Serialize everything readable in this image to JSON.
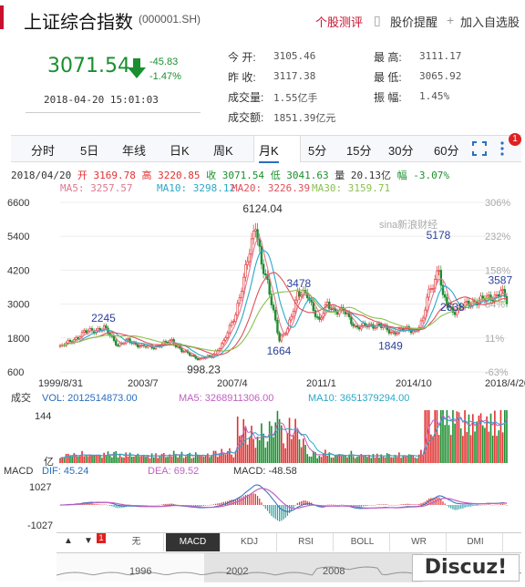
{
  "header": {
    "title": "上证综合指数",
    "code": "(000001.SH)",
    "review_label": "个股测评",
    "alert_label": "股价提醒",
    "add_label": "加入自选股"
  },
  "quote": {
    "price": "3071.54",
    "change": "-45.83",
    "change_pct": "-1.47%",
    "timestamp": "2018-04-20 15:01:03",
    "open_label": "今  开:",
    "open": "3105.46",
    "prev_close_label": "昨  收:",
    "prev_close": "3117.38",
    "volume_label": "成交量:",
    "volume": "1.55亿手",
    "amount_label": "成交额:",
    "amount": "1851.39亿元",
    "high_label": "最  高:",
    "high": "3111.17",
    "low_label": "最  低:",
    "low": "3065.92",
    "amplitude_label": "振  幅:",
    "amplitude": "1.45%"
  },
  "tabs": [
    "分时",
    "5日",
    "年线",
    "日K",
    "周K",
    "月K",
    "5分",
    "15分",
    "30分",
    "60分"
  ],
  "active_tab": "月K",
  "badge_count": "1",
  "info_line": {
    "date": "2018/04/20",
    "open": "开 3169.78",
    "high": "高 3220.85",
    "close": "收 3071.54",
    "low": "低 3041.63",
    "volume": "量 20.13亿",
    "amp": "幅 -3.07%"
  },
  "ma_line": {
    "ma5": "MA5: 3257.57",
    "ma10": "MA10: 3298.12",
    "ma20": "MA20: 3226.39",
    "ma30": "MA30: 3159.71"
  },
  "colors": {
    "up": "#e23030",
    "down": "#1a8f2f",
    "ma5": "#e07890",
    "ma10": "#2aa8c8",
    "ma20": "#e0505a",
    "ma30": "#8ac050",
    "macd_dif": "#2a6ebd",
    "macd_dea": "#c060c0"
  },
  "watermark": "sina新浪财经",
  "chart_data": {
    "type": "candlestick",
    "y_ticks_left": [
      "6600",
      "5400",
      "4200",
      "3000",
      "1800",
      "600"
    ],
    "y_ticks_right": [
      "306%",
      "232%",
      "158%",
      "84%",
      "11%",
      "-63%"
    ],
    "ylim": [
      600,
      6600
    ],
    "x_ticks": [
      "1999/8/31",
      "2003/7",
      "2007/4",
      "2011/1",
      "2014/10",
      "2018/4/20"
    ],
    "annotations": [
      {
        "label": "2245",
        "x": "2001/6",
        "y": 2245
      },
      {
        "label": "998.23",
        "x": "2005/6",
        "y": 998.23
      },
      {
        "label": "6124.04",
        "x": "2007/10",
        "y": 6124.04
      },
      {
        "label": "1664",
        "x": "2008/10",
        "y": 1664
      },
      {
        "label": "3478",
        "x": "2009/8",
        "y": 3478
      },
      {
        "label": "1849",
        "x": "2013/6",
        "y": 1849
      },
      {
        "label": "5178",
        "x": "2015/6",
        "y": 5178
      },
      {
        "label": "2638",
        "x": "2016/1",
        "y": 2638
      },
      {
        "label": "3587",
        "x": "2018/1",
        "y": 3587
      }
    ],
    "close_series": [
      {
        "x": "1999/8",
        "y": 1500
      },
      {
        "x": "2000/2",
        "y": 1700
      },
      {
        "x": "2000/8",
        "y": 2000
      },
      {
        "x": "2001/6",
        "y": 2150
      },
      {
        "x": "2002/1",
        "y": 1550
      },
      {
        "x": "2002/6",
        "y": 1700
      },
      {
        "x": "2003/1",
        "y": 1500
      },
      {
        "x": "2003/7",
        "y": 1480
      },
      {
        "x": "2004/4",
        "y": 1700
      },
      {
        "x": "2004/9",
        "y": 1350
      },
      {
        "x": "2005/6",
        "y": 1050
      },
      {
        "x": "2005/12",
        "y": 1160
      },
      {
        "x": "2006/6",
        "y": 1650
      },
      {
        "x": "2006/12",
        "y": 2680
      },
      {
        "x": "2007/4",
        "y": 3840
      },
      {
        "x": "2007/8",
        "y": 5200
      },
      {
        "x": "2007/10",
        "y": 5950
      },
      {
        "x": "2008/1",
        "y": 4380
      },
      {
        "x": "2008/4",
        "y": 3690
      },
      {
        "x": "2008/7",
        "y": 2770
      },
      {
        "x": "2008/10",
        "y": 1730
      },
      {
        "x": "2009/2",
        "y": 2080
      },
      {
        "x": "2009/7",
        "y": 3410
      },
      {
        "x": "2009/12",
        "y": 3280
      },
      {
        "x": "2010/6",
        "y": 2400
      },
      {
        "x": "2010/10",
        "y": 2980
      },
      {
        "x": "2011/1",
        "y": 2790
      },
      {
        "x": "2011/6",
        "y": 2760
      },
      {
        "x": "2011/12",
        "y": 2200
      },
      {
        "x": "2012/6",
        "y": 2220
      },
      {
        "x": "2012/12",
        "y": 2270
      },
      {
        "x": "2013/6",
        "y": 1980
      },
      {
        "x": "2013/12",
        "y": 2120
      },
      {
        "x": "2014/6",
        "y": 2050
      },
      {
        "x": "2014/10",
        "y": 2420
      },
      {
        "x": "2014/12",
        "y": 3230
      },
      {
        "x": "2015/3",
        "y": 3750
      },
      {
        "x": "2015/6",
        "y": 4280
      },
      {
        "x": "2015/8",
        "y": 3200
      },
      {
        "x": "2016/1",
        "y": 2740
      },
      {
        "x": "2016/6",
        "y": 2930
      },
      {
        "x": "2016/12",
        "y": 3100
      },
      {
        "x": "2017/6",
        "y": 3190
      },
      {
        "x": "2017/11",
        "y": 3320
      },
      {
        "x": "2018/1",
        "y": 3480
      },
      {
        "x": "2018/4",
        "y": 3071.54
      }
    ],
    "ma_series": [
      {
        "name": "MA5",
        "last": 3257.57
      },
      {
        "name": "MA10",
        "last": 3298.12
      },
      {
        "name": "MA20",
        "last": 3226.39
      },
      {
        "name": "MA30",
        "last": 3159.71
      }
    ],
    "volume_panel": {
      "label": "成交",
      "vol": "VOL: 2012514873.00",
      "ma5": "MA5: 3268911306.00",
      "ma10": "MA10: 3651379294.00",
      "y_top": "144",
      "y_unit": "亿"
    },
    "macd_panel": {
      "label": "MACD",
      "dif": "DIF: 45.24",
      "dea": "DEA: 69.52",
      "macd": "MACD: -48.58",
      "y_top": "1027",
      "y_bottom": "-1027"
    }
  },
  "indicator_tabs": [
    "无",
    "MACD",
    "KDJ",
    "RSI",
    "BOLL",
    "WR",
    "DMI"
  ],
  "active_indicator": "MACD",
  "overview_ticks": [
    "1996",
    "2002",
    "2008"
  ],
  "brand": "Discuz!"
}
